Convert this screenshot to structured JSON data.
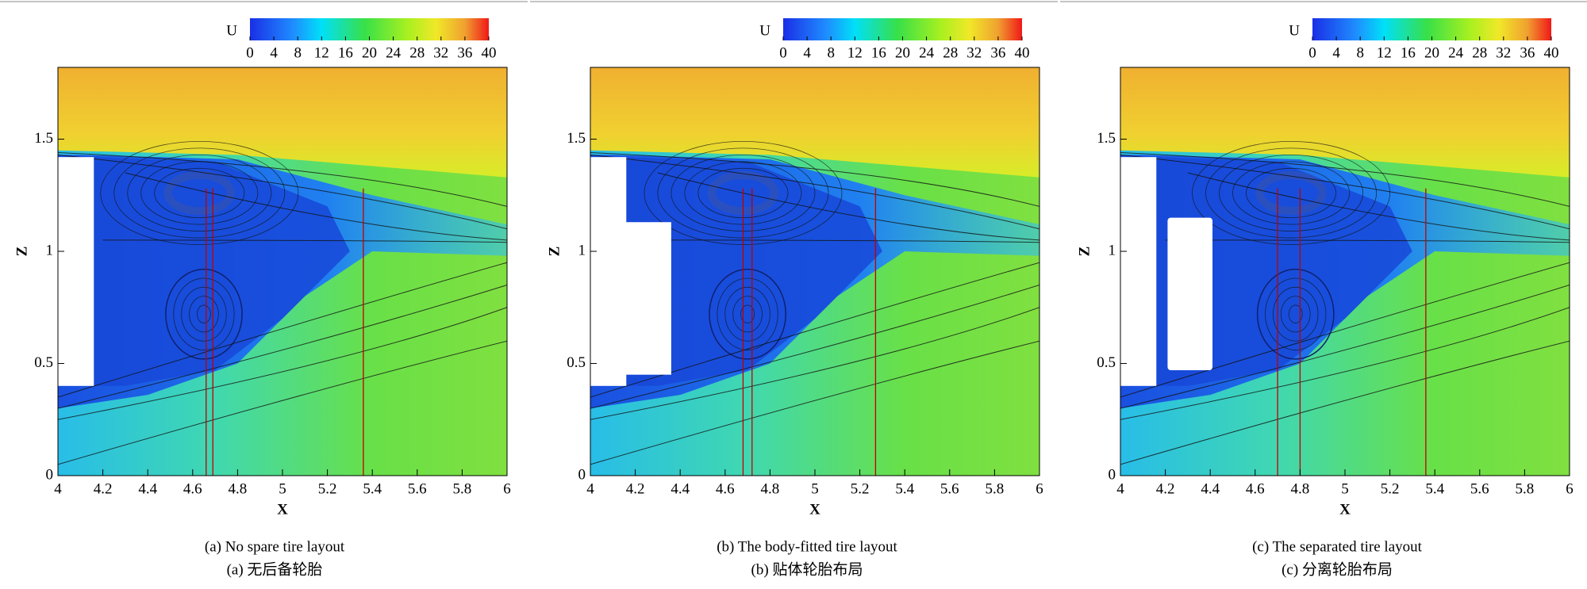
{
  "chart_data": [
    {
      "type": "contour",
      "colorbar_label": "U",
      "clim": [
        0,
        40
      ],
      "colorbar_ticks": [
        0,
        4,
        8,
        12,
        16,
        20,
        24,
        28,
        32,
        36,
        40
      ],
      "xlabel": "X",
      "ylabel": "Z",
      "xlim": [
        4,
        6
      ],
      "ylim": [
        0,
        1.82
      ],
      "xticks": [
        4,
        4.2,
        4.4,
        4.6,
        4.8,
        5,
        5.2,
        5.4,
        5.6,
        5.8,
        6
      ],
      "yticks": [
        0,
        0.5,
        1,
        1.5
      ],
      "reference_lines_x": [
        4.66,
        4.69,
        5.36
      ],
      "caption": "(a) No spare tire layout",
      "caption_zh": "(a) 无后备轮胎"
    },
    {
      "type": "contour",
      "colorbar_label": "U",
      "clim": [
        0,
        40
      ],
      "colorbar_ticks": [
        0,
        4,
        8,
        12,
        16,
        20,
        24,
        28,
        32,
        36,
        40
      ],
      "xlabel": "X",
      "ylabel": "Z",
      "xlim": [
        4,
        6
      ],
      "ylim": [
        0,
        1.82
      ],
      "xticks": [
        4,
        4.2,
        4.4,
        4.6,
        4.8,
        5,
        5.2,
        5.4,
        5.6,
        5.8,
        6
      ],
      "yticks": [
        0,
        0.5,
        1,
        1.5
      ],
      "reference_lines_x": [
        4.68,
        4.72,
        5.27
      ],
      "caption": "(b) The body-fitted tire layout",
      "caption_zh": "(b) 贴体轮胎布局"
    },
    {
      "type": "contour",
      "colorbar_label": "U",
      "clim": [
        0,
        40
      ],
      "colorbar_ticks": [
        0,
        4,
        8,
        12,
        16,
        20,
        24,
        28,
        32,
        36,
        40
      ],
      "xlabel": "X",
      "ylabel": "Z",
      "xlim": [
        4,
        6
      ],
      "ylim": [
        0,
        1.82
      ],
      "xticks": [
        4,
        4.2,
        4.4,
        4.6,
        4.8,
        5,
        5.2,
        5.4,
        5.6,
        5.8,
        6
      ],
      "yticks": [
        0,
        0.5,
        1,
        1.5
      ],
      "reference_lines_x": [
        4.7,
        4.8,
        5.36
      ],
      "caption": "(c) The separated tire layout",
      "caption_zh": "(c) 分离轮胎布局"
    }
  ]
}
